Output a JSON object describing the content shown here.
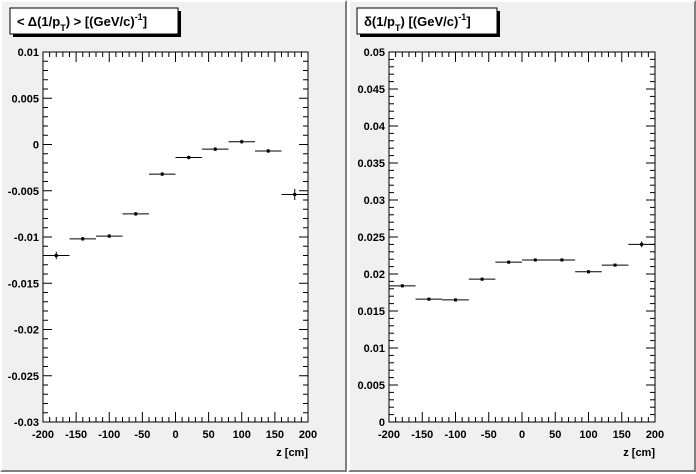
{
  "chart_data": [
    {
      "type": "scatter",
      "title_parts": [
        "< Δ(1/p",
        "T",
        ") >  [(GeV/c)",
        "-1",
        "]"
      ],
      "xlabel": "z  [cm]",
      "ylabel": "",
      "xlim": [
        -200,
        200
      ],
      "ylim": [
        -0.03,
        0.01
      ],
      "x_ticks": [
        -200,
        -150,
        -100,
        -50,
        0,
        50,
        100,
        150,
        200
      ],
      "x_tick_labels": [
        "-200",
        "-150",
        "-100",
        "-50",
        "0",
        "50",
        "100",
        "150",
        "200"
      ],
      "y_ticks": [
        -0.03,
        -0.025,
        -0.02,
        -0.015,
        -0.01,
        -0.005,
        0,
        0.005,
        0.01
      ],
      "y_tick_labels": [
        "-0.03",
        "-0.025",
        "-0.02",
        "-0.015",
        "-0.01",
        "-0.005",
        "0",
        "0.005",
        "0.01"
      ],
      "grid": false,
      "x_bin_halfwidth": 20,
      "x": [
        -180,
        -140,
        -100,
        -60,
        -20,
        20,
        60,
        100,
        140,
        180
      ],
      "y": [
        -0.012,
        -0.0102,
        -0.0099,
        -0.0075,
        -0.0032,
        -0.0014,
        -0.0005,
        0.0003,
        -0.0007,
        -0.0054
      ],
      "y_err": [
        0.0004,
        0.0002,
        0.0002,
        0.0002,
        0.0002,
        0.0002,
        0.0002,
        0.0002,
        0.0002,
        0.0006
      ]
    },
    {
      "type": "scatter",
      "title_parts": [
        "δ(1/p",
        "T",
        ")  [(GeV/c)",
        "-1",
        "]"
      ],
      "xlabel": "z  [cm]",
      "ylabel": "",
      "xlim": [
        -200,
        200
      ],
      "ylim": [
        0,
        0.05
      ],
      "x_ticks": [
        -200,
        -150,
        -100,
        -50,
        0,
        50,
        100,
        150,
        200
      ],
      "x_tick_labels": [
        "-200",
        "-150",
        "-100",
        "-50",
        "0",
        "50",
        "100",
        "150",
        "200"
      ],
      "y_ticks": [
        0,
        0.005,
        0.01,
        0.015,
        0.02,
        0.025,
        0.03,
        0.035,
        0.04,
        0.045,
        0.05
      ],
      "y_tick_labels": [
        "0",
        "0.005",
        "0.01",
        "0.015",
        "0.02",
        "0.025",
        "0.03",
        "0.035",
        "0.04",
        "0.045",
        "0.05"
      ],
      "grid": false,
      "x_bin_halfwidth": 20,
      "x": [
        -180,
        -140,
        -100,
        -60,
        -20,
        20,
        60,
        100,
        140,
        180
      ],
      "y": [
        0.0184,
        0.0166,
        0.0165,
        0.0193,
        0.0216,
        0.0219,
        0.0219,
        0.0203,
        0.0212,
        0.024
      ],
      "y_err": [
        0.0002,
        0.0002,
        0.0002,
        0.0002,
        0.0002,
        0.0002,
        0.0002,
        0.0002,
        0.0002,
        0.0004
      ]
    }
  ]
}
